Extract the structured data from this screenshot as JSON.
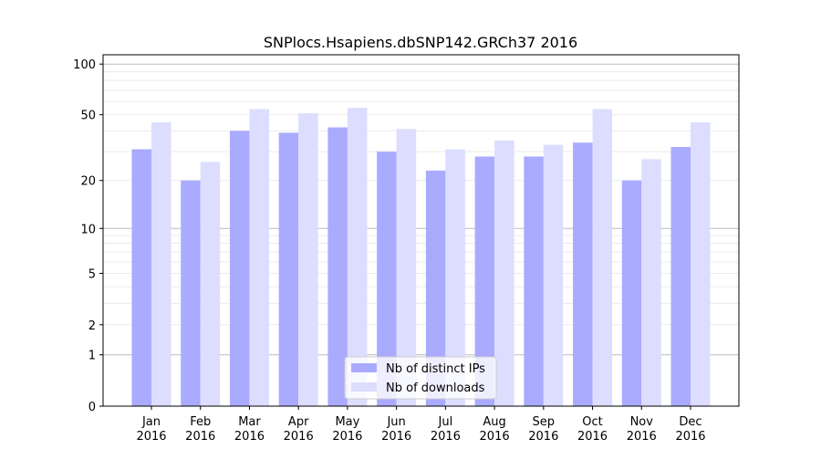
{
  "chart_data": {
    "type": "bar",
    "title": "SNPlocs.Hsapiens.dbSNP142.GRCh37 2016",
    "xlabel": "",
    "ylabel": "",
    "yscale": "log(1+y)",
    "ylim": [
      0,
      110
    ],
    "yticks": [
      0,
      1,
      2,
      5,
      10,
      20,
      50,
      100
    ],
    "grid": true,
    "legend_position": "bottom-center",
    "categories": [
      "Jan\n2016",
      "Feb\n2016",
      "Mar\n2016",
      "Apr\n2016",
      "May\n2016",
      "Jun\n2016",
      "Jul\n2016",
      "Aug\n2016",
      "Sep\n2016",
      "Oct\n2016",
      "Nov\n2016",
      "Dec\n2016"
    ],
    "series": [
      {
        "name": "Nb of distinct IPs",
        "color": "#aaaaff",
        "values": [
          31,
          20,
          40,
          39,
          42,
          30,
          23,
          28,
          28,
          34,
          20,
          32
        ]
      },
      {
        "name": "Nb of downloads",
        "color": "#ddddff",
        "values": [
          45,
          26,
          54,
          51,
          55,
          41,
          31,
          35,
          33,
          54,
          27,
          45
        ]
      }
    ]
  }
}
